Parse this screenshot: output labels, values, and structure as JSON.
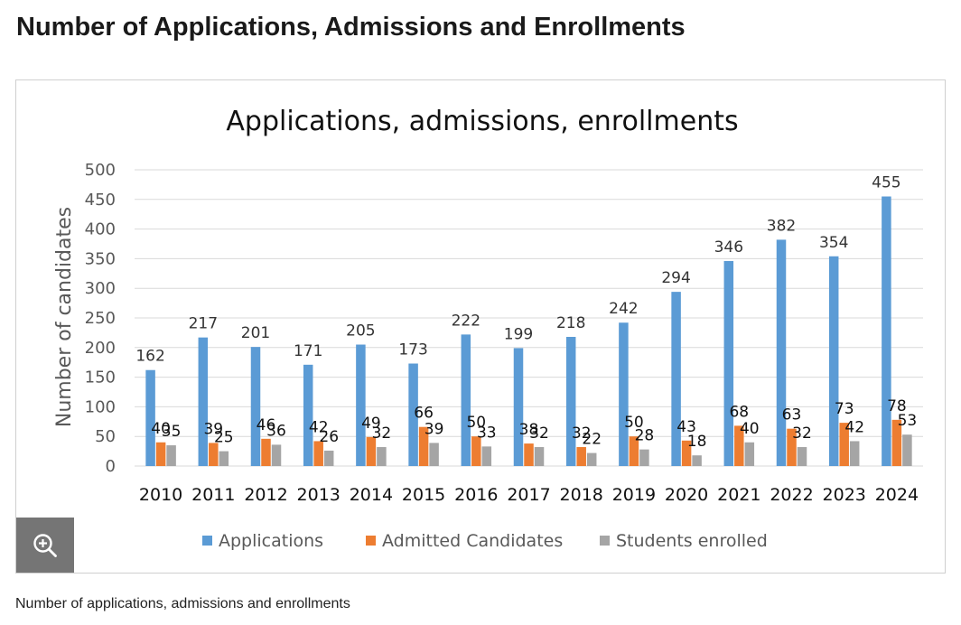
{
  "page": {
    "heading": "Number of Applications, Admissions and Enrollments",
    "caption": "Number of applications, admissions and enrollments",
    "zoom_icon": "zoom-in-icon"
  },
  "chart_data": {
    "type": "bar",
    "title": "Applications, admissions, enrollments",
    "xlabel": "",
    "ylabel": "Number of candidates",
    "ylim": [
      0,
      500
    ],
    "ytick_step": 50,
    "grid": true,
    "legend_position": "bottom",
    "categories": [
      "2010",
      "2011",
      "2012",
      "2013",
      "2014",
      "2015",
      "2016",
      "2017",
      "2018",
      "2019",
      "2020",
      "2021",
      "2022",
      "2023",
      "2024"
    ],
    "series": [
      {
        "name": "Applications",
        "color": "#5B9BD5",
        "values": [
          162,
          217,
          201,
          171,
          205,
          173,
          222,
          199,
          218,
          242,
          294,
          346,
          382,
          354,
          455
        ]
      },
      {
        "name": "Admitted Candidates",
        "color": "#ED7D31",
        "values": [
          40,
          39,
          46,
          42,
          49,
          66,
          50,
          38,
          32,
          50,
          43,
          68,
          63,
          73,
          78
        ]
      },
      {
        "name": "Students enrolled",
        "color": "#A5A5A5",
        "values": [
          35,
          25,
          36,
          26,
          32,
          39,
          33,
          32,
          22,
          28,
          18,
          40,
          32,
          42,
          53
        ]
      }
    ]
  }
}
